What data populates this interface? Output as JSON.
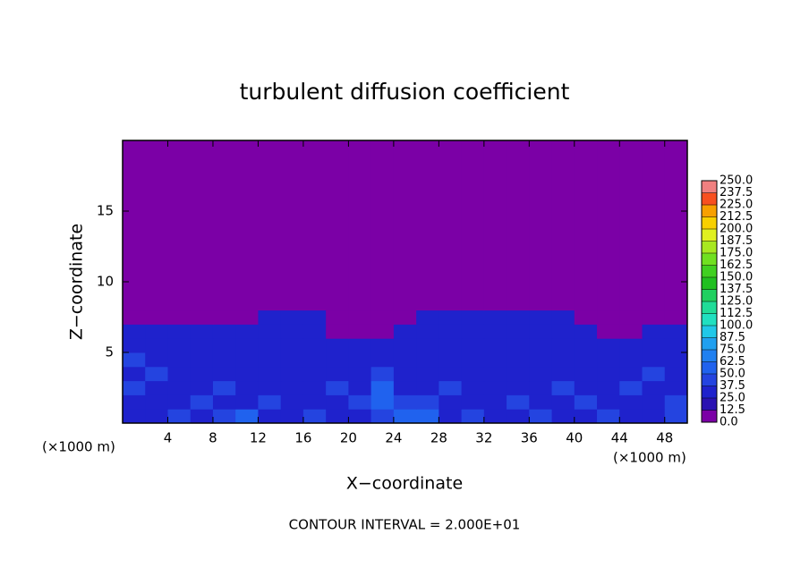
{
  "chart_data": {
    "type": "contour",
    "title": "turbulent diffusion coefficient",
    "xlabel": "X−coordinate",
    "ylabel": "Z−coordinate",
    "x_unit": "(×1000 m)",
    "y_unit": "(×1000 m)",
    "annotation": "CONTOUR INTERVAL = 2.000E+01",
    "xlim": [
      0,
      50
    ],
    "ylim": [
      0,
      20
    ],
    "xticks": [
      4,
      8,
      12,
      16,
      20,
      24,
      28,
      32,
      36,
      40,
      44,
      48
    ],
    "yticks": [
      5,
      10,
      15
    ],
    "field": {
      "x_edges": [
        0,
        2,
        4,
        6,
        8,
        10,
        12,
        14,
        16,
        18,
        20,
        22,
        24,
        26,
        28,
        30,
        32,
        34,
        36,
        38,
        40,
        42,
        44,
        46,
        48,
        50
      ],
      "z_edges": [
        0,
        1,
        2,
        3,
        4,
        5,
        6,
        7,
        8,
        20
      ],
      "values": [
        [
          30,
          35,
          40,
          30,
          45,
          50,
          35,
          30,
          40,
          35,
          30,
          45,
          60,
          50,
          35,
          40,
          30,
          35,
          40,
          30,
          35,
          40,
          30,
          35,
          45
        ],
        [
          35,
          30,
          35,
          40,
          35,
          30,
          45,
          35,
          30,
          30,
          40,
          55,
          45,
          40,
          35,
          30,
          35,
          45,
          35,
          30,
          40,
          35,
          30,
          35,
          40
        ],
        [
          40,
          35,
          30,
          35,
          40,
          30,
          35,
          30,
          35,
          40,
          35,
          50,
          35,
          30,
          40,
          35,
          30,
          30,
          35,
          40,
          30,
          35,
          40,
          30,
          35
        ],
        [
          35,
          40,
          35,
          30,
          35,
          30,
          30,
          30,
          30,
          35,
          30,
          40,
          30,
          35,
          30,
          30,
          35,
          30,
          30,
          35,
          30,
          30,
          35,
          40,
          30
        ],
        [
          40,
          35,
          30,
          35,
          30,
          30,
          30,
          30,
          30,
          35,
          30,
          35,
          30,
          30,
          30,
          30,
          30,
          30,
          35,
          30,
          30,
          30,
          30,
          35,
          35
        ],
        [
          35,
          30,
          30,
          30,
          35,
          30,
          30,
          35,
          30,
          30,
          30,
          35,
          35,
          30,
          30,
          30,
          30,
          30,
          30,
          30,
          30,
          35,
          30,
          30,
          30
        ],
        [
          30,
          30,
          25,
          30,
          30,
          30,
          30,
          30,
          30,
          0,
          0,
          0,
          30,
          30,
          30,
          30,
          30,
          30,
          30,
          30,
          30,
          0,
          0,
          25,
          30
        ],
        [
          0,
          0,
          0,
          0,
          0,
          0,
          25,
          25,
          25,
          0,
          0,
          0,
          0,
          25,
          25,
          25,
          25,
          25,
          25,
          25,
          0,
          0,
          0,
          0,
          0
        ],
        [
          0,
          0,
          0,
          0,
          0,
          0,
          0,
          0,
          0,
          0,
          0,
          0,
          0,
          0,
          0,
          0,
          0,
          0,
          0,
          0,
          0,
          0,
          0,
          0,
          0
        ]
      ]
    },
    "colorbar": {
      "levels": [
        {
          "value": 0,
          "label": "0.0"
        },
        12.5,
        {
          "value": 25,
          "label": "25.0"
        },
        37.5,
        {
          "value": 50,
          "label": "50.0"
        },
        62.5,
        {
          "value": 75,
          "label": "75.0"
        },
        87.5,
        {
          "value": 100,
          "label": "100.0"
        },
        112.5,
        {
          "value": 125,
          "label": "125.0"
        },
        137.5,
        {
          "value": 150,
          "label": "150.0"
        },
        162.5,
        {
          "value": 175,
          "label": "175.0"
        },
        187.5,
        {
          "value": 200,
          "label": "200.0"
        },
        212.5,
        {
          "value": 225,
          "label": "225.0"
        },
        237.5,
        {
          "value": 250,
          "label": "250.0"
        }
      ],
      "colors": [
        "#7b00a6",
        "#2a12b2",
        "#1f22cc",
        "#2444e0",
        "#2062ee",
        "#2080f0",
        "#20a0f0",
        "#20c8e8",
        "#20e0c0",
        "#20dc98",
        "#20d060",
        "#20c020",
        "#40d020",
        "#70e020",
        "#a8e820",
        "#e0f020",
        "#f8d000",
        "#f8a000",
        "#f85020",
        "#f08080"
      ]
    }
  }
}
